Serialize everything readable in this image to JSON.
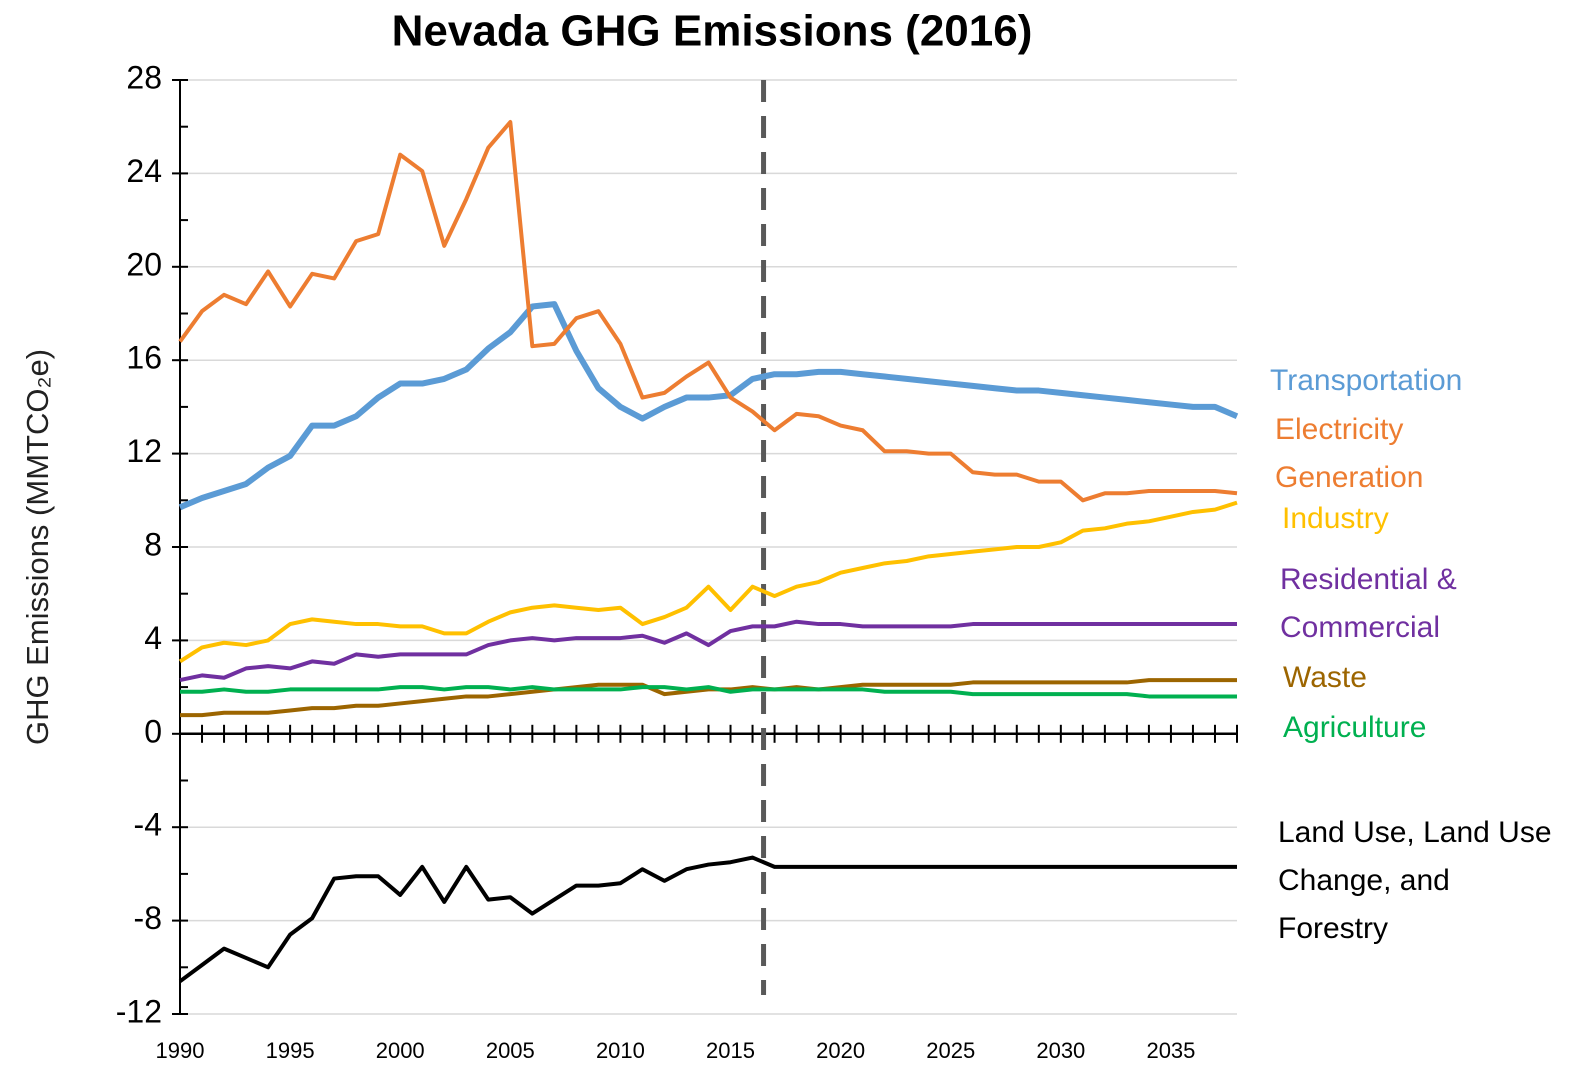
{
  "chart_data": {
    "type": "line",
    "title": "Nevada GHG Emissions (2016)",
    "y_label": "GHG Emissions (MMTCO₂e)",
    "x": [
      1990,
      1991,
      1992,
      1993,
      1994,
      1995,
      1996,
      1997,
      1998,
      1999,
      2000,
      2001,
      2002,
      2003,
      2004,
      2005,
      2006,
      2007,
      2008,
      2009,
      2010,
      2011,
      2012,
      2013,
      2014,
      2015,
      2016,
      2017,
      2018,
      2019,
      2020,
      2021,
      2022,
      2023,
      2024,
      2025,
      2026,
      2027,
      2028,
      2029,
      2030,
      2031,
      2032,
      2033,
      2034,
      2035,
      2036,
      2037,
      2038
    ],
    "xlim": [
      1990,
      2038
    ],
    "xticks": [
      1990,
      1995,
      2000,
      2005,
      2010,
      2015,
      2020,
      2025,
      2030,
      2035
    ],
    "ylim": [
      -12,
      28
    ],
    "yticks": [
      -12,
      -8,
      -4,
      0,
      4,
      8,
      12,
      16,
      20,
      24,
      28
    ],
    "grid": true,
    "reference_x": 2016.5,
    "series": [
      {
        "name": "Transportation",
        "color": "#5b9bd5",
        "values": [
          9.7,
          10.1,
          10.4,
          10.7,
          11.4,
          11.9,
          13.2,
          13.2,
          13.6,
          14.4,
          15.0,
          15.0,
          15.2,
          15.6,
          16.5,
          17.2,
          18.3,
          18.4,
          16.4,
          14.8,
          14.0,
          13.5,
          14.0,
          14.4,
          14.4,
          14.5,
          15.2,
          15.4,
          15.4,
          15.5,
          15.5,
          15.4,
          15.3,
          15.2,
          15.1,
          15.0,
          14.9,
          14.8,
          14.7,
          14.7,
          14.6,
          14.5,
          14.4,
          14.3,
          14.2,
          14.1,
          14.0,
          14.0,
          13.6
        ]
      },
      {
        "name": "Electricity Generation",
        "color": "#ed7d31",
        "values": [
          16.8,
          18.1,
          18.8,
          18.4,
          19.8,
          18.3,
          19.7,
          19.5,
          21.1,
          21.4,
          24.8,
          24.1,
          20.9,
          22.9,
          25.1,
          26.2,
          16.6,
          16.7,
          17.8,
          18.1,
          16.7,
          14.4,
          14.6,
          15.3,
          15.9,
          14.4,
          13.8,
          13.0,
          13.7,
          13.6,
          13.2,
          13.0,
          12.1,
          12.1,
          12.0,
          12.0,
          11.2,
          11.1,
          11.1,
          10.8,
          10.8,
          10.0,
          10.3,
          10.3,
          10.4,
          10.4,
          10.4,
          10.4,
          10.3
        ]
      },
      {
        "name": "Industry",
        "color": "#ffc000",
        "values": [
          3.1,
          3.7,
          3.9,
          3.8,
          4.0,
          4.7,
          4.9,
          4.8,
          4.7,
          4.7,
          4.6,
          4.6,
          4.3,
          4.3,
          4.8,
          5.2,
          5.4,
          5.5,
          5.4,
          5.3,
          5.4,
          4.7,
          5.0,
          5.4,
          6.3,
          5.3,
          6.3,
          5.9,
          6.3,
          6.5,
          6.9,
          7.1,
          7.3,
          7.4,
          7.6,
          7.7,
          7.8,
          7.9,
          8.0,
          8.0,
          8.2,
          8.7,
          8.8,
          9.0,
          9.1,
          9.3,
          9.5,
          9.6,
          9.9
        ]
      },
      {
        "name": "Residential & Commercial",
        "color": "#7030a0",
        "values": [
          2.3,
          2.5,
          2.4,
          2.8,
          2.9,
          2.8,
          3.1,
          3.0,
          3.4,
          3.3,
          3.4,
          3.4,
          3.4,
          3.4,
          3.8,
          4.0,
          4.1,
          4.0,
          4.1,
          4.1,
          4.1,
          4.2,
          3.9,
          4.3,
          3.8,
          4.4,
          4.6,
          4.6,
          4.8,
          4.7,
          4.7,
          4.6,
          4.6,
          4.6,
          4.6,
          4.6,
          4.7,
          4.7,
          4.7,
          4.7,
          4.7,
          4.7,
          4.7,
          4.7,
          4.7,
          4.7,
          4.7,
          4.7,
          4.7
        ]
      },
      {
        "name": "Waste",
        "color": "#9c6500",
        "values": [
          0.8,
          0.8,
          0.9,
          0.9,
          0.9,
          1.0,
          1.1,
          1.1,
          1.2,
          1.2,
          1.3,
          1.4,
          1.5,
          1.6,
          1.6,
          1.7,
          1.8,
          1.9,
          2.0,
          2.1,
          2.1,
          2.1,
          1.7,
          1.8,
          1.9,
          1.9,
          2.0,
          1.9,
          2.0,
          1.9,
          2.0,
          2.1,
          2.1,
          2.1,
          2.1,
          2.1,
          2.2,
          2.2,
          2.2,
          2.2,
          2.2,
          2.2,
          2.2,
          2.2,
          2.3,
          2.3,
          2.3,
          2.3,
          2.3
        ]
      },
      {
        "name": "Agriculture",
        "color": "#00b050",
        "values": [
          1.8,
          1.8,
          1.9,
          1.8,
          1.8,
          1.9,
          1.9,
          1.9,
          1.9,
          1.9,
          2.0,
          2.0,
          1.9,
          2.0,
          2.0,
          1.9,
          2.0,
          1.9,
          1.9,
          1.9,
          1.9,
          2.0,
          2.0,
          1.9,
          2.0,
          1.8,
          1.9,
          1.9,
          1.9,
          1.9,
          1.9,
          1.9,
          1.8,
          1.8,
          1.8,
          1.8,
          1.7,
          1.7,
          1.7,
          1.7,
          1.7,
          1.7,
          1.7,
          1.7,
          1.6,
          1.6,
          1.6,
          1.6,
          1.6
        ]
      },
      {
        "name": "Land Use, Land Use Change, and Forestry",
        "color": "#000000",
        "values": [
          -10.6,
          -9.9,
          -9.2,
          -9.6,
          -10.0,
          -8.6,
          -7.9,
          -6.2,
          -6.1,
          -6.1,
          -6.9,
          -5.7,
          -7.2,
          -5.7,
          -7.1,
          -7.0,
          -7.7,
          -7.1,
          -6.5,
          -6.5,
          -6.4,
          -5.8,
          -6.3,
          -5.8,
          -5.6,
          -5.5,
          -5.3,
          -5.7,
          -5.7,
          -5.7,
          -5.7,
          -5.7,
          -5.7,
          -5.7,
          -5.7,
          -5.7,
          -5.7,
          -5.7,
          -5.7,
          -5.7,
          -5.7,
          -5.7,
          -5.7,
          -5.7,
          -5.7,
          -5.7,
          -5.7,
          -5.7,
          -5.7
        ]
      }
    ]
  }
}
